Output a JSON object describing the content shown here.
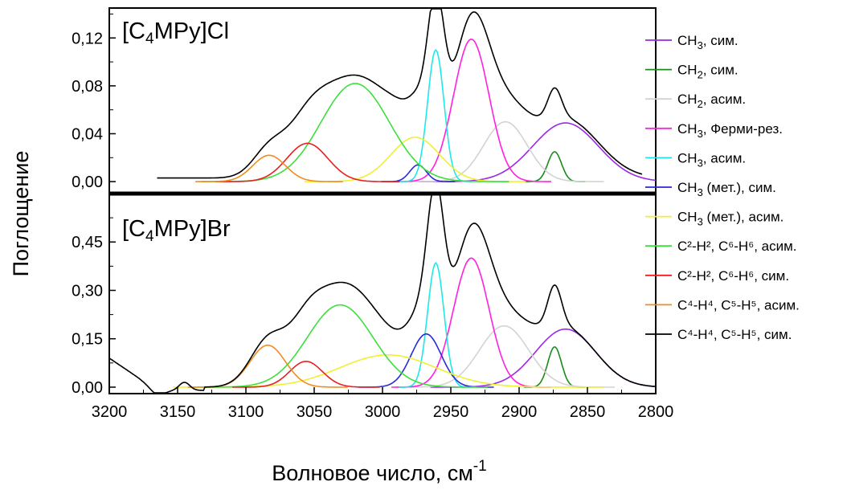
{
  "chart_data": {
    "type": "line",
    "x_axis": {
      "label": "Волновое число, см",
      "label_sup": "-1",
      "range": [
        3200,
        2800
      ],
      "ticks": [
        "3200",
        "3150",
        "3100",
        "3050",
        "3000",
        "2950",
        "2900",
        "2850",
        "2800"
      ]
    },
    "y_axis": {
      "label": "Поглощение"
    },
    "panels": [
      {
        "label_pre": "[C",
        "label_sub": "4",
        "label_post": "MPy]Cl",
        "ylim": [
          -0.01,
          0.145
        ],
        "yticks": [
          "0,00",
          "0,04",
          "0,08",
          "0,12"
        ],
        "yticks_values": [
          0,
          0.04,
          0.08,
          0.12
        ],
        "components": [
          {
            "color": "#9c27e8",
            "center": 2866,
            "height": 0.049,
            "width": 24
          },
          {
            "color": "#1a8c1a",
            "center": 2874,
            "height": 0.025,
            "width": 5
          },
          {
            "color": "#d3d3d3",
            "center": 2910,
            "height": 0.05,
            "width": 16
          },
          {
            "color": "#ff20e0",
            "center": 2935,
            "height": 0.119,
            "width": 13
          },
          {
            "color": "#20e8e8",
            "center": 2961,
            "height": 0.11,
            "width": 6
          },
          {
            "color": "#2a2ad6",
            "center": 2974,
            "height": 0.014,
            "width": 6
          },
          {
            "color": "#f0f030",
            "center": 2976,
            "height": 0.037,
            "width": 18
          },
          {
            "color": "#3ce03c",
            "center": 3020,
            "height": 0.082,
            "width": 25
          },
          {
            "color": "#e82020",
            "center": 3055,
            "height": 0.032,
            "width": 15
          },
          {
            "color": "#f08c20",
            "center": 3083,
            "height": 0.022,
            "width": 12
          }
        ],
        "sum_baseline": 0.003,
        "sum_range": [
          3165,
          2810
        ]
      },
      {
        "label_pre": "[C",
        "label_sub": "4",
        "label_post": "MPy]Br",
        "ylim": [
          -0.02,
          0.6
        ],
        "yticks": [
          "0,00",
          "0,15",
          "0,30",
          "0,45"
        ],
        "yticks_values": [
          0,
          0.15,
          0.3,
          0.45
        ],
        "components": [
          {
            "color": "#9c27e8",
            "center": 2866,
            "height": 0.18,
            "width": 22
          },
          {
            "color": "#1a8c1a",
            "center": 2874,
            "height": 0.125,
            "width": 5
          },
          {
            "color": "#d3d3d3",
            "center": 2911,
            "height": 0.19,
            "width": 18
          },
          {
            "color": "#ff20e0",
            "center": 2935,
            "height": 0.4,
            "width": 13
          },
          {
            "color": "#20e8e8",
            "center": 2961,
            "height": 0.385,
            "width": 6
          },
          {
            "color": "#2a2ad6",
            "center": 2968,
            "height": 0.165,
            "width": 11
          },
          {
            "color": "#f0f030",
            "center": 2996,
            "height": 0.1,
            "width": 35
          },
          {
            "color": "#3ce03c",
            "center": 3031,
            "height": 0.255,
            "width": 24
          },
          {
            "color": "#e82020",
            "center": 3056,
            "height": 0.08,
            "width": 12
          },
          {
            "color": "#f08c20",
            "center": 3084,
            "height": 0.13,
            "width": 13
          }
        ],
        "sum_baseline": 0.0,
        "sum_range": [
          3200,
          2800
        ]
      }
    ],
    "legend": {
      "placement": "right",
      "items": [
        {
          "color": "#9c27e8",
          "pre": "CH",
          "sub": "3",
          "sup": "",
          "post": ", сим."
        },
        {
          "color": "#1a8c1a",
          "pre": "CH",
          "sub": "2",
          "sup": "",
          "post": ", сим."
        },
        {
          "color": "#d3d3d3",
          "pre": "CH",
          "sub": "2",
          "sup": "",
          "post": ", асим."
        },
        {
          "color": "#ff20e0",
          "pre": "CH",
          "sub": "3",
          "sup": "",
          "post": ", Ферми-рез."
        },
        {
          "color": "#20e8e8",
          "pre": "CH",
          "sub": "3",
          "sup": "",
          "post": ", асим."
        },
        {
          "color": "#2a2ad6",
          "pre": "CH",
          "sub": "3",
          "sup": "",
          "post": " (мет.), сим."
        },
        {
          "color": "#f0f030",
          "pre": "CH",
          "sub": "3",
          "sup": "",
          "post": " (мет.), асим."
        },
        {
          "color": "#3ce03c",
          "text": "C²-H², C⁶-H⁶, асим."
        },
        {
          "color": "#e82020",
          "text": "C²-H², C⁶-H⁶, сим."
        },
        {
          "color": "#f08c20",
          "text": "C⁴-H⁴, C⁵-H⁵, асим."
        },
        {
          "color": "#000000",
          "text": "C⁴-H⁴, C⁵-H⁵, сим."
        }
      ]
    }
  }
}
